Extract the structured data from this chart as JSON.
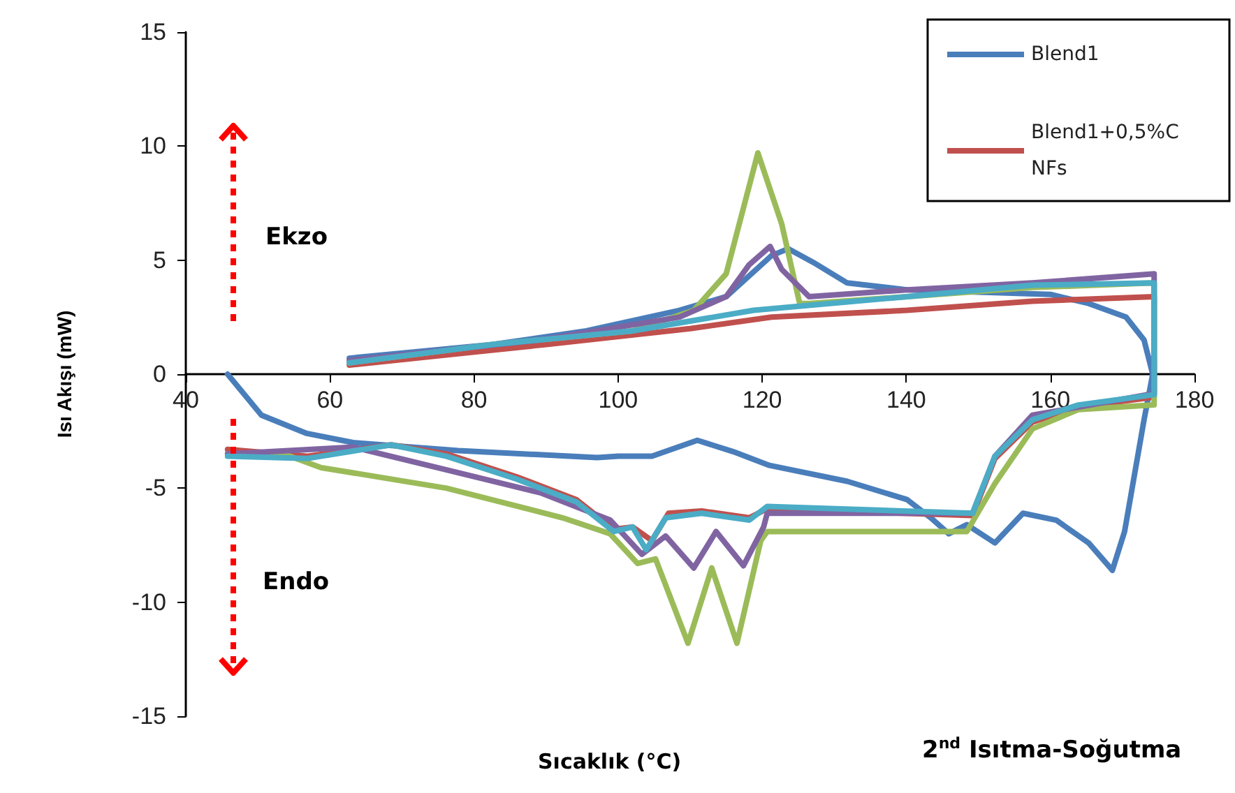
{
  "chart_data": {
    "type": "line",
    "xlabel": "Sıcaklık (°C)",
    "ylabel": "Isı Akışı (mW)",
    "xlim": [
      40,
      180
    ],
    "xticks": [
      40,
      60,
      80,
      100,
      120,
      140,
      160,
      180
    ],
    "ylim": [
      -15,
      15
    ],
    "yticks": [
      -15,
      -10,
      -5,
      0,
      5,
      10,
      15
    ],
    "grid": false,
    "legend": "top right",
    "marker": "none",
    "line_style": "solid",
    "annotations": [
      "Ekzo",
      "Endo",
      "2$^{nd}$ Isıtma-Soğutma"
    ],
    "series": [
      {
        "name": "Blend1",
        "color": "#4a7ebb",
        "x": [
          45.8,
          50.5,
          56.8,
          63.2,
          77.8,
          97.1,
          100,
          104.7,
          111,
          116,
          121,
          131.8,
          140.1,
          143.4,
          145.9,
          148.4,
          152.3,
          156.2,
          160.8,
          165.3,
          168.6,
          170.3,
          173,
          174.2,
          173,
          170.5,
          165.3,
          160,
          140.1,
          131.8,
          127.1,
          123.6,
          121.3,
          115,
          108.5,
          95.6,
          82.6,
          62.7
        ],
        "values": [
          0,
          -1.8,
          -2.6,
          -3.0,
          -3.35,
          -3.66,
          -3.6,
          -3.6,
          -2.9,
          -3.4,
          -4.0,
          -4.7,
          -5.5,
          -6.3,
          -7.0,
          -6.6,
          -7.4,
          -6.1,
          -6.4,
          -7.4,
          -8.6,
          -6.9,
          -2.0,
          0,
          1.5,
          2.5,
          3.1,
          3.5,
          3.7,
          4.0,
          4.9,
          5.5,
          5.2,
          3.4,
          2.8,
          1.9,
          1.3,
          0.7
        ]
      },
      {
        "name": "Blend1+0,5%CNFs",
        "color": "#c0504d",
        "x": [
          45.8,
          56.8,
          68.5,
          76.2,
          85.9,
          94.2,
          99.4,
          102,
          104.7,
          107,
          111.6,
          118.2,
          120.7,
          149.2,
          152.3,
          157.5,
          163.9,
          174.4,
          174.4,
          157.5,
          140.1,
          121.3,
          110,
          90,
          62.7
        ],
        "values": [
          -3.3,
          -3.6,
          -3.1,
          -3.5,
          -4.5,
          -5.5,
          -6.8,
          -6.7,
          -7.3,
          -6.1,
          -6.0,
          -6.3,
          -5.9,
          -6.2,
          -3.7,
          -2.1,
          -1.45,
          -1.0,
          3.4,
          3.2,
          2.8,
          2.5,
          2.0,
          1.3,
          0.4
        ]
      },
      {
        "color": "#9bbb59",
        "x": [
          45.8,
          53.6,
          58.8,
          76.2,
          92.3,
          98.9,
          102.7,
          105.2,
          109.7,
          113,
          116.5,
          119.8,
          120.7,
          148.4,
          152.3,
          157.5,
          163.9,
          174.4,
          174.4,
          157.5,
          140.1,
          126.5,
          125.2,
          122.7,
          119.4,
          115,
          110.5,
          102,
          82.6,
          62.7
        ],
        "values": [
          -3.5,
          -3.5,
          -4.1,
          -5.0,
          -6.3,
          -7.0,
          -8.3,
          -8.1,
          -11.8,
          -8.5,
          -11.8,
          -7.3,
          -6.9,
          -6.9,
          -4.8,
          -2.4,
          -1.55,
          -1.35,
          4.0,
          3.8,
          3.4,
          3.1,
          3.1,
          6.6,
          9.7,
          4.4,
          2.8,
          1.9,
          1.3,
          0.5
        ]
      },
      {
        "color": "#8064a2",
        "x": [
          45.8,
          63.2,
          76.2,
          89.2,
          98.9,
          103.3,
          106.6,
          110.5,
          113.6,
          117.4,
          120.2,
          120.7,
          149.2,
          152.3,
          157.5,
          174.4,
          174.4,
          157.5,
          140.1,
          126.5,
          122.7,
          121.1,
          118.2,
          115,
          108.5,
          89.2,
          62.7
        ],
        "values": [
          -3.5,
          -3.2,
          -4.2,
          -5.2,
          -6.4,
          -7.9,
          -7.1,
          -8.5,
          -6.9,
          -8.4,
          -6.7,
          -6.1,
          -6.1,
          -3.6,
          -1.8,
          -0.85,
          4.4,
          4.0,
          3.7,
          3.4,
          4.6,
          5.6,
          4.8,
          3.4,
          2.5,
          1.5,
          0.6
        ]
      },
      {
        "color": "#4bacc6",
        "x": [
          45.8,
          56.8,
          68.5,
          76.2,
          85.9,
          94.2,
          99.4,
          102,
          103.9,
          106.6,
          111.6,
          118.2,
          120.7,
          149.2,
          152.3,
          157.5,
          163.9,
          174.4,
          174.4,
          157.5,
          140.1,
          118.8,
          102,
          82.6,
          62.7
        ],
        "values": [
          -3.6,
          -3.7,
          -3.1,
          -3.6,
          -4.6,
          -5.6,
          -6.9,
          -6.7,
          -7.7,
          -6.3,
          -6.1,
          -6.4,
          -5.8,
          -6.1,
          -3.6,
          -2.0,
          -1.35,
          -0.9,
          4.0,
          3.9,
          3.4,
          2.8,
          1.9,
          1.3,
          0.5
        ]
      }
    ]
  }
}
